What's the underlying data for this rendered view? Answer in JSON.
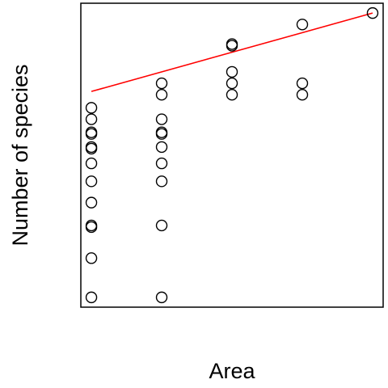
{
  "chart_data": {
    "type": "scatter",
    "title": "",
    "xlabel": "Area",
    "ylabel": "Number of species",
    "x_ticks_shown": false,
    "y_ticks_shown": false,
    "grid": false,
    "xlim": [
      0.85,
      5.15
    ],
    "ylim": [
      0.7,
      10.0
    ],
    "points": [
      {
        "x": 1,
        "y": 1
      },
      {
        "x": 1,
        "y": 2.2
      },
      {
        "x": 1,
        "y": 3.15
      },
      {
        "x": 1,
        "y": 3.2
      },
      {
        "x": 1,
        "y": 3.9
      },
      {
        "x": 1,
        "y": 4.55
      },
      {
        "x": 1,
        "y": 5.1
      },
      {
        "x": 1,
        "y": 5.55
      },
      {
        "x": 1,
        "y": 5.6
      },
      {
        "x": 1,
        "y": 6.0
      },
      {
        "x": 1,
        "y": 6.05
      },
      {
        "x": 1,
        "y": 6.45
      },
      {
        "x": 1,
        "y": 6.8
      },
      {
        "x": 2,
        "y": 1
      },
      {
        "x": 2,
        "y": 3.2
      },
      {
        "x": 2,
        "y": 4.55
      },
      {
        "x": 2,
        "y": 5.1
      },
      {
        "x": 2,
        "y": 5.6
      },
      {
        "x": 2,
        "y": 6.0
      },
      {
        "x": 2,
        "y": 6.05
      },
      {
        "x": 2,
        "y": 6.45
      },
      {
        "x": 2,
        "y": 7.2
      },
      {
        "x": 2,
        "y": 7.55
      },
      {
        "x": 3,
        "y": 7.2
      },
      {
        "x": 3,
        "y": 7.55
      },
      {
        "x": 3,
        "y": 7.9
      },
      {
        "x": 3,
        "y": 8.7
      },
      {
        "x": 3,
        "y": 8.75
      },
      {
        "x": 4,
        "y": 7.2
      },
      {
        "x": 4,
        "y": 7.55
      },
      {
        "x": 4,
        "y": 9.35
      },
      {
        "x": 5,
        "y": 9.7
      }
    ],
    "fit_line": {
      "x": [
        1,
        5
      ],
      "y": [
        7.3,
        9.7
      ],
      "color": "#ff0000"
    },
    "point_color": "#000000"
  }
}
